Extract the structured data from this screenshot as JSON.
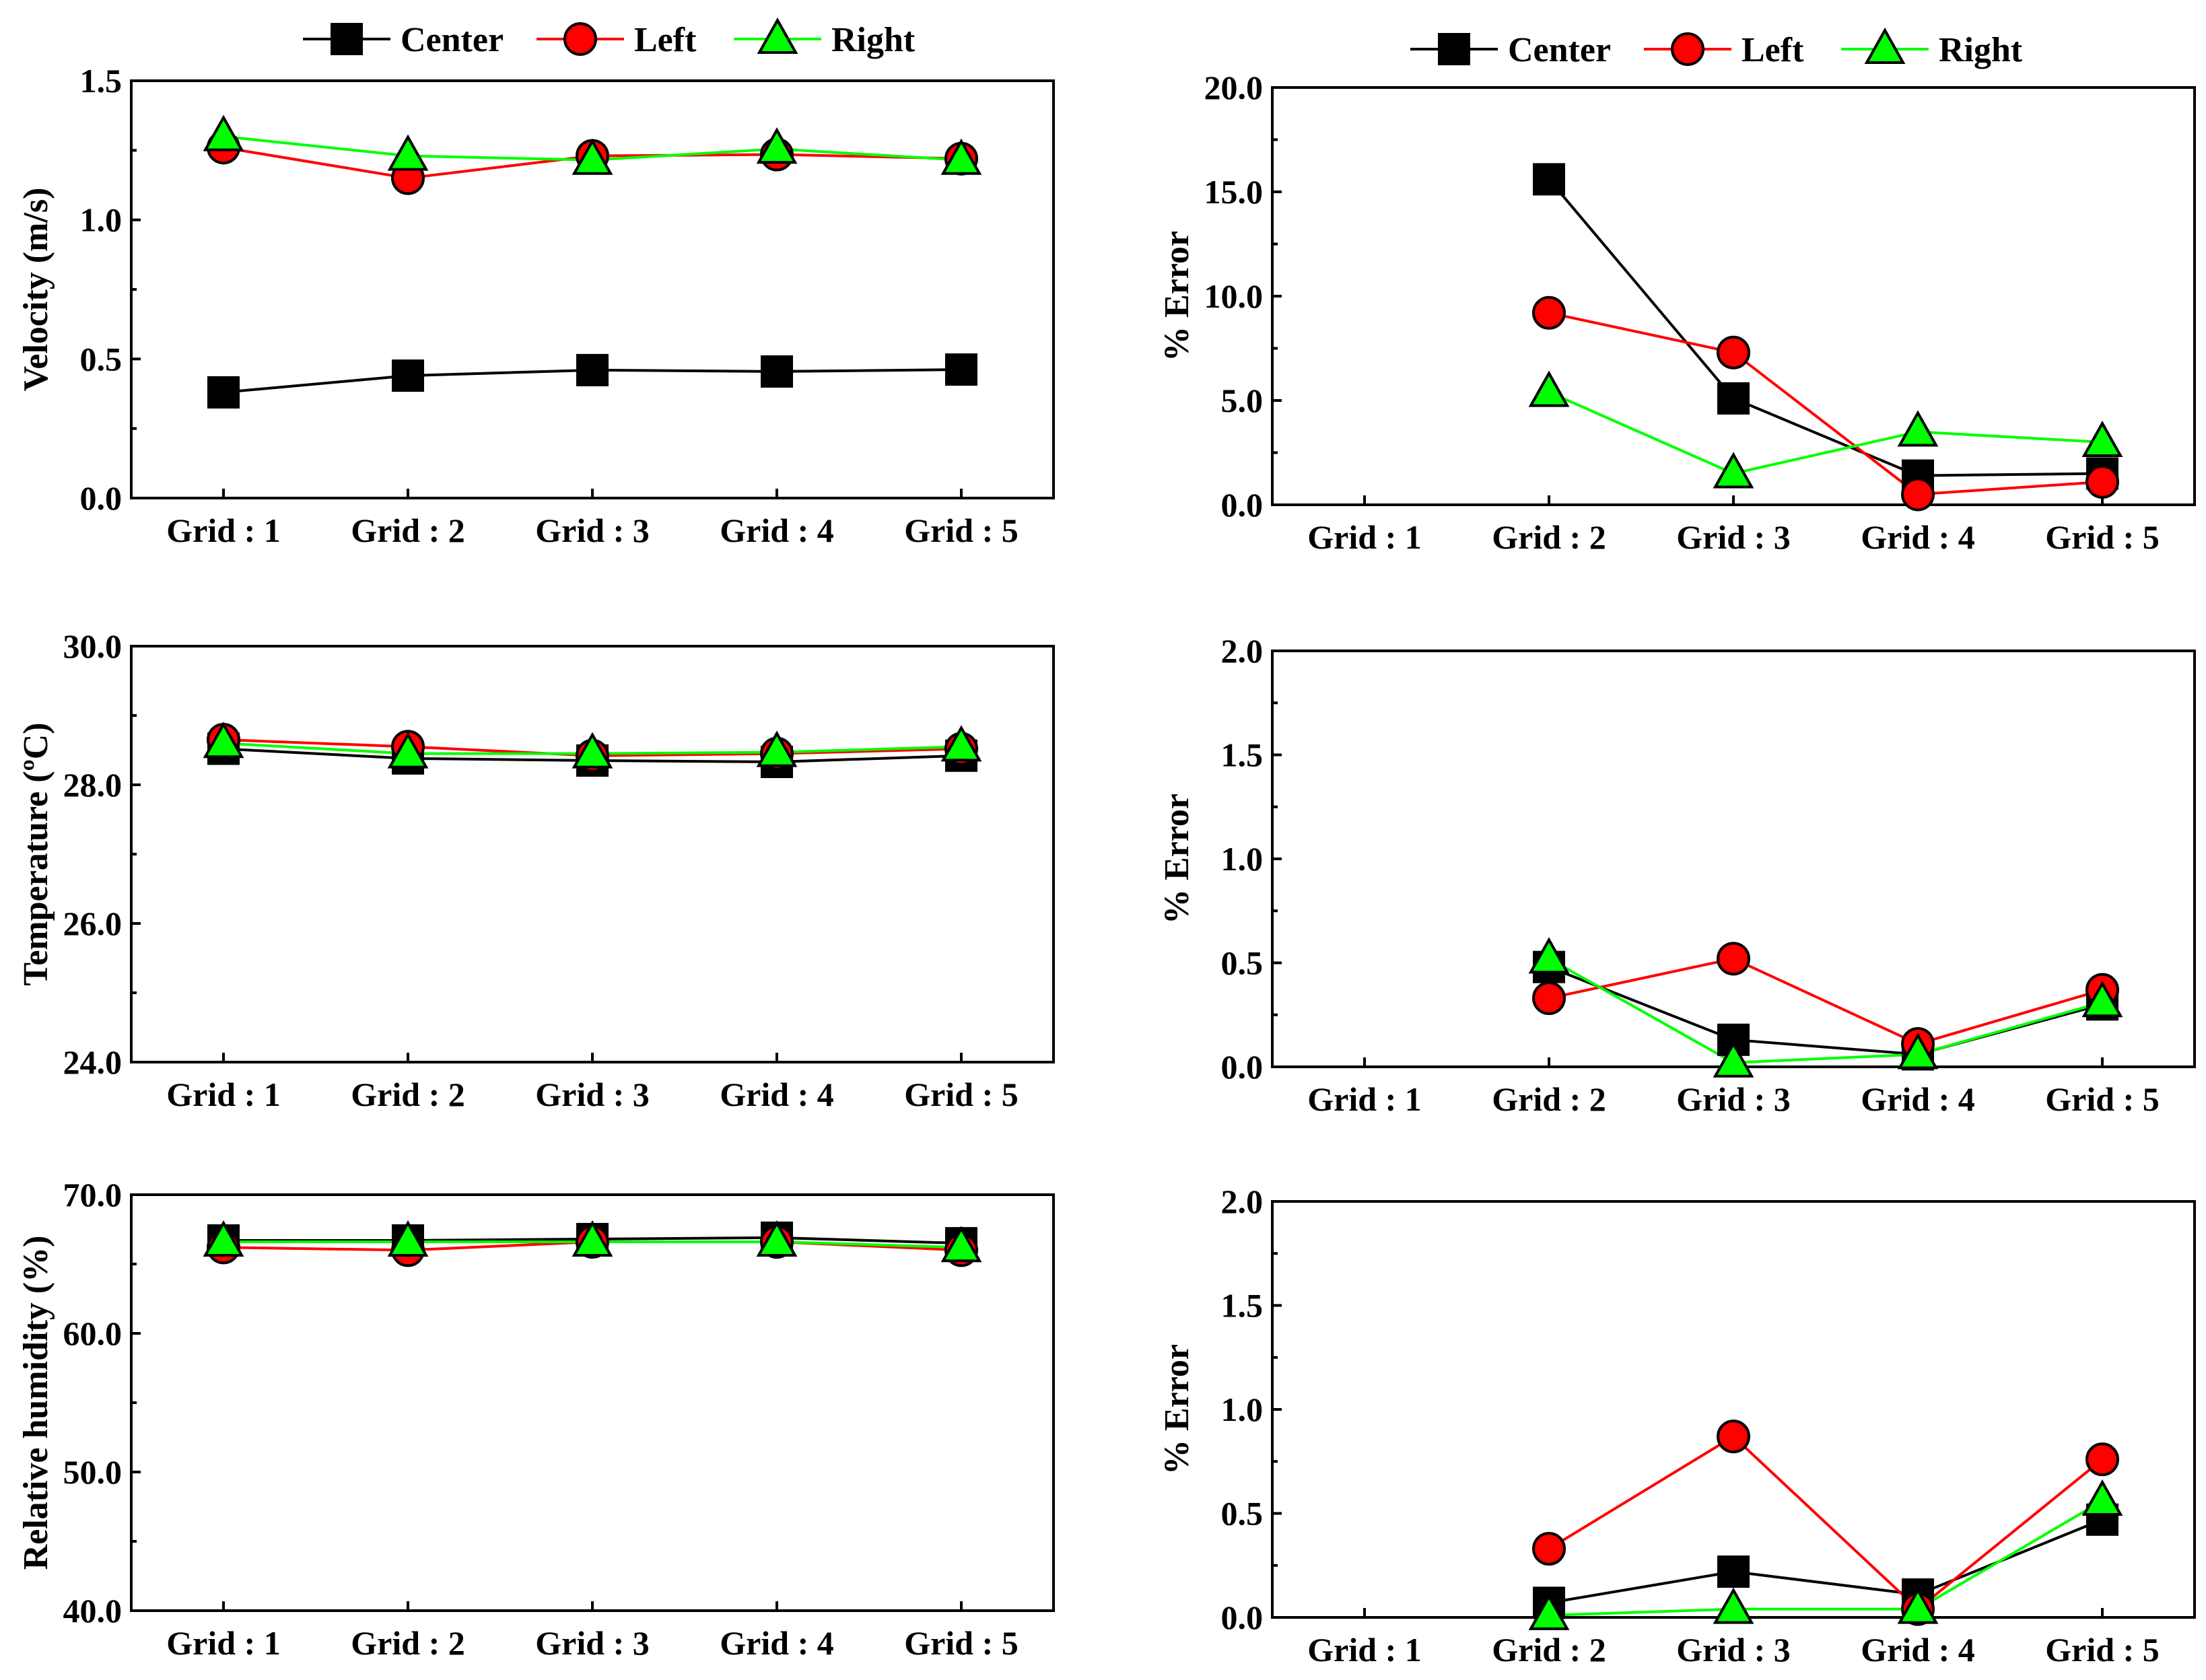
{
  "legend": {
    "series": [
      {
        "name": "Center",
        "color": "#000000",
        "marker": "square"
      },
      {
        "name": "Left",
        "color": "#ff0000",
        "marker": "circle"
      },
      {
        "name": "Right",
        "color": "#00ff00",
        "marker": "triangle"
      }
    ]
  },
  "chart_data": [
    {
      "id": "velocity",
      "type": "line",
      "categories": [
        "Grid : 1",
        "Grid : 2",
        "Grid : 3",
        "Grid : 4",
        "Grid : 5"
      ],
      "ylabel": "Velocity (m/s)",
      "ylim": [
        0,
        1.5
      ],
      "yticks": [
        "0.0",
        "0.5",
        "1.0",
        "1.5"
      ],
      "series": [
        {
          "name": "Center",
          "values": [
            0.38,
            0.44,
            0.46,
            0.455,
            0.462
          ]
        },
        {
          "name": "Left",
          "values": [
            1.26,
            1.15,
            1.23,
            1.235,
            1.22
          ]
        },
        {
          "name": "Right",
          "values": [
            1.3,
            1.23,
            1.215,
            1.255,
            1.215
          ]
        }
      ]
    },
    {
      "id": "velocity-error",
      "type": "line",
      "categories": [
        "Grid : 1",
        "Grid : 2",
        "Grid : 3",
        "Grid : 4",
        "Grid : 5"
      ],
      "ylabel": "% Error",
      "ylim": [
        0,
        20
      ],
      "yticks": [
        "0.0",
        "5.0",
        "10.0",
        "15.0",
        "20.0"
      ],
      "series": [
        {
          "name": "Center",
          "values": [
            null,
            15.6,
            5.1,
            1.4,
            1.5
          ]
        },
        {
          "name": "Left",
          "values": [
            null,
            9.2,
            7.3,
            0.5,
            1.1
          ]
        },
        {
          "name": "Right",
          "values": [
            null,
            5.4,
            1.5,
            3.5,
            3.0
          ]
        }
      ]
    },
    {
      "id": "temperature",
      "type": "line",
      "categories": [
        "Grid : 1",
        "Grid : 2",
        "Grid : 3",
        "Grid : 4",
        "Grid : 5"
      ],
      "ylabel": "Temperature (ºC)",
      "ylim": [
        24,
        30
      ],
      "yticks": [
        "24.0",
        "26.0",
        "28.0",
        "30.0"
      ],
      "series": [
        {
          "name": "Center",
          "values": [
            28.52,
            28.38,
            28.35,
            28.33,
            28.42
          ]
        },
        {
          "name": "Left",
          "values": [
            28.65,
            28.55,
            28.42,
            28.45,
            28.52
          ]
        },
        {
          "name": "Right",
          "values": [
            28.6,
            28.45,
            28.45,
            28.47,
            28.55
          ]
        }
      ]
    },
    {
      "id": "temperature-error",
      "type": "line",
      "categories": [
        "Grid : 1",
        "Grid : 2",
        "Grid : 3",
        "Grid : 4",
        "Grid : 5"
      ],
      "ylabel": "% Error",
      "ylim": [
        0,
        2
      ],
      "yticks": [
        "0.0",
        "0.5",
        "1.0",
        "1.5",
        "2.0"
      ],
      "series": [
        {
          "name": "Center",
          "values": [
            null,
            0.48,
            0.13,
            0.06,
            0.3
          ]
        },
        {
          "name": "Left",
          "values": [
            null,
            0.33,
            0.52,
            0.11,
            0.37
          ]
        },
        {
          "name": "Right",
          "values": [
            null,
            0.52,
            0.02,
            0.06,
            0.31
          ]
        }
      ]
    },
    {
      "id": "humidity",
      "type": "line",
      "categories": [
        "Grid : 1",
        "Grid : 2",
        "Grid : 3",
        "Grid : 4",
        "Grid : 5"
      ],
      "ylabel": "Relative humidity (%)",
      "ylim": [
        40,
        70
      ],
      "yticks": [
        "40.0",
        "50.0",
        "60.0",
        "70.0"
      ],
      "series": [
        {
          "name": "Center",
          "values": [
            66.7,
            66.7,
            66.8,
            66.9,
            66.5
          ]
        },
        {
          "name": "Left",
          "values": [
            66.2,
            66.0,
            66.6,
            66.6,
            66.0
          ]
        },
        {
          "name": "Right",
          "values": [
            66.6,
            66.6,
            66.6,
            66.6,
            66.2
          ]
        }
      ]
    },
    {
      "id": "humidity-error",
      "type": "line",
      "categories": [
        "Grid : 1",
        "Grid : 2",
        "Grid : 3",
        "Grid : 4",
        "Grid : 5"
      ],
      "ylabel": "% Error",
      "ylim": [
        0,
        2
      ],
      "yticks": [
        "0.0",
        "0.5",
        "1.0",
        "1.5",
        "2.0"
      ],
      "series": [
        {
          "name": "Center",
          "values": [
            null,
            0.07,
            0.22,
            0.11,
            0.47
          ]
        },
        {
          "name": "Left",
          "values": [
            null,
            0.33,
            0.87,
            0.04,
            0.76
          ]
        },
        {
          "name": "Right",
          "values": [
            null,
            0.01,
            0.04,
            0.04,
            0.56
          ]
        }
      ]
    }
  ]
}
